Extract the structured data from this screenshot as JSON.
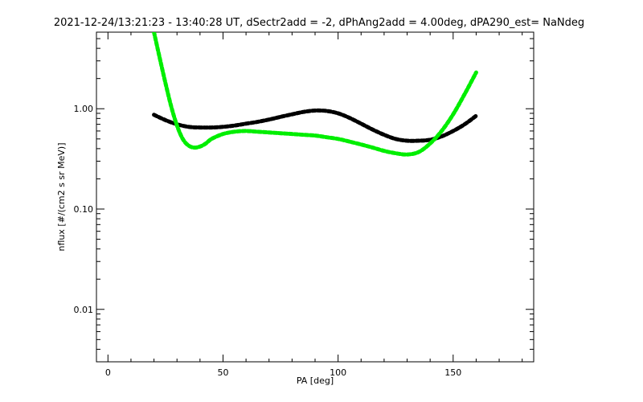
{
  "chart_data": {
    "type": "line",
    "title": "2021-12-24/13:21:23 - 13:40:28 UT, dSectr2add = -2, dPhAng2add = 4.00deg, dPA290_est=   NaNdeg",
    "xlabel": "PA [deg]",
    "ylabel": "nflux [#/(cm2 s sr MeV)]",
    "xlim": [
      -5,
      185
    ],
    "ylim": [
      0.003,
      5.8
    ],
    "yscale": "log",
    "xticks": [
      0,
      50,
      100,
      150
    ],
    "xtick_labels": [
      "0",
      "50",
      "100",
      "150"
    ],
    "yticks": [
      0.01,
      0.1,
      1.0
    ],
    "ytick_labels": [
      "0.01",
      "0.10",
      "1.00"
    ],
    "grid": false,
    "series": [
      {
        "color": "#000000",
        "x": [
          20,
          25,
          30,
          35,
          40,
          45,
          50,
          55,
          60,
          65,
          70,
          75,
          80,
          85,
          90,
          95,
          100,
          105,
          110,
          115,
          120,
          125,
          130,
          135,
          140,
          145,
          150,
          155,
          160
        ],
        "y": [
          0.87,
          0.77,
          0.7,
          0.66,
          0.65,
          0.65,
          0.66,
          0.68,
          0.71,
          0.74,
          0.78,
          0.83,
          0.88,
          0.93,
          0.96,
          0.95,
          0.9,
          0.81,
          0.71,
          0.62,
          0.55,
          0.5,
          0.48,
          0.48,
          0.49,
          0.53,
          0.6,
          0.7,
          0.85
        ]
      },
      {
        "color": "#00ee00",
        "x": [
          20,
          22.5,
          25,
          27.5,
          30,
          32.5,
          35,
          37.5,
          40,
          42.5,
          45,
          50,
          55,
          60,
          65,
          70,
          75,
          80,
          85,
          90,
          95,
          100,
          105,
          110,
          115,
          120,
          125,
          130,
          135,
          140,
          145,
          150,
          155,
          160
        ],
        "y": [
          5.8,
          3.2,
          1.8,
          1.05,
          0.68,
          0.5,
          0.43,
          0.41,
          0.42,
          0.45,
          0.5,
          0.56,
          0.59,
          0.6,
          0.59,
          0.58,
          0.57,
          0.56,
          0.55,
          0.54,
          0.52,
          0.5,
          0.47,
          0.44,
          0.41,
          0.38,
          0.36,
          0.35,
          0.37,
          0.45,
          0.6,
          0.88,
          1.4,
          2.3
        ]
      }
    ]
  }
}
